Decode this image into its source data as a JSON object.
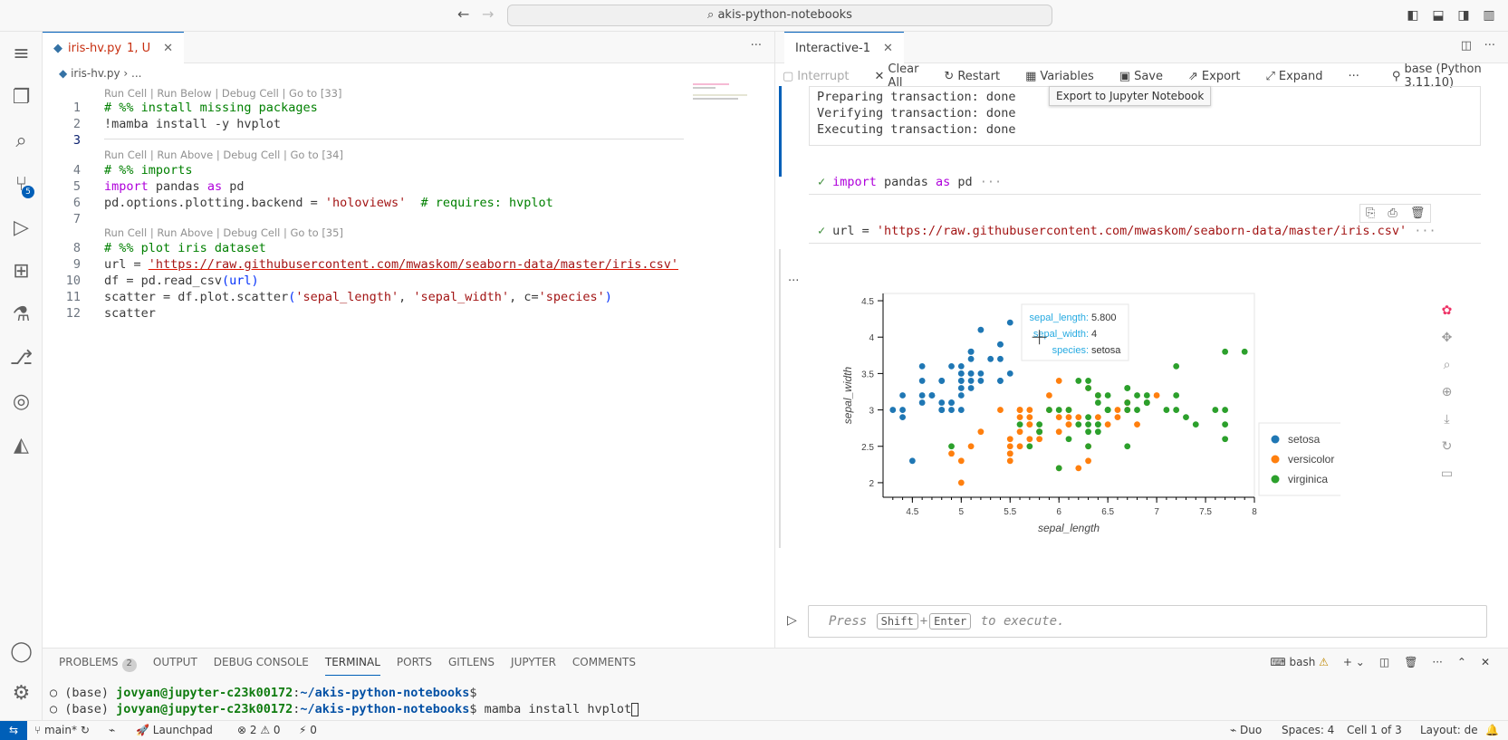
{
  "titlebar": {
    "search": "akis-python-notebooks"
  },
  "activity": {
    "scm_badge": "5"
  },
  "editor": {
    "tab_title": "iris-hv.py",
    "tab_status": "1, U",
    "breadcrumb_file": "iris-hv.py",
    "breadcrumb_more": "...",
    "lens1": "Run Cell | Run Below | Debug Cell | Go to [33]",
    "lens2": "Run Cell | Run Above | Debug Cell | Go to [34]",
    "lens3": "Run Cell | Run Above | Debug Cell | Go to [35]",
    "lines": {
      "l1": "# %% install missing packages",
      "l2": "!mamba install -y hvplot",
      "l4": "# %% imports",
      "l5a": "import",
      "l5b": " pandas ",
      "l5c": "as",
      "l5d": " pd",
      "l6a": "pd.options.plotting.backend = ",
      "l6b": "'holoviews'",
      "l6c": "  # requires: hvplot",
      "l8": "# %% plot iris dataset",
      "l9a": "url = ",
      "l9b": "'https://raw.githubusercontent.com/mwaskom/seaborn-data/master/iris.csv'",
      "l10a": "df = pd.read_csv",
      "l10b": "(url)",
      "l11a": "scatter = df.plot.scatter",
      "l11b": "(",
      "l11c": "'sepal_length'",
      "l11d": ", ",
      "l11e": "'sepal_width'",
      "l11f": ", c=",
      "l11g": "'species'",
      "l11h": ")",
      "l12": "scatter"
    }
  },
  "interactive": {
    "tab_title": "Interactive-1",
    "toolbar": {
      "interrupt": "Interrupt",
      "clear_all": "Clear All",
      "restart": "Restart",
      "variables": "Variables",
      "save": "Save",
      "export": "Export",
      "expand": "Expand",
      "kernel": "base (Python 3.11.10)"
    },
    "tooltip": "Export to Jupyter Notebook",
    "output_lines": [
      "Preparing transaction: done",
      "Verifying transaction: done",
      "Executing transaction: done"
    ],
    "cell2a": "import",
    "cell2b": " pandas ",
    "cell2c": "as",
    "cell2d": " pd",
    "cell3a": "url = ",
    "cell3b": "'https://raw.githubusercontent.com/mwaskom/seaborn-data/master/iris.csv'",
    "hover": {
      "k1": "sepal_length:",
      "v1": "5.800",
      "k2": "sepal_width:",
      "v2": "4",
      "k3": "species:",
      "v3": "setosa"
    },
    "input_press": "Press",
    "input_key1": "Shift",
    "input_plus": "+",
    "input_key2": "Enter",
    "input_to": "to execute."
  },
  "chart_data": {
    "type": "scatter",
    "xlabel": "sepal_length",
    "ylabel": "sepal_width",
    "xlim": [
      4.2,
      8.0
    ],
    "ylim": [
      1.8,
      4.6
    ],
    "xticks": [
      4.5,
      5,
      5.5,
      6,
      6.5,
      7,
      7.5,
      8
    ],
    "yticks": [
      2,
      2.5,
      3,
      3.5,
      4,
      4.5
    ],
    "legend": "right",
    "series": [
      {
        "name": "setosa",
        "color": "#1f77b4",
        "points": [
          [
            5.1,
            3.5
          ],
          [
            4.9,
            3.0
          ],
          [
            4.7,
            3.2
          ],
          [
            4.6,
            3.1
          ],
          [
            5.0,
            3.6
          ],
          [
            5.4,
            3.9
          ],
          [
            4.6,
            3.4
          ],
          [
            5.0,
            3.4
          ],
          [
            4.4,
            2.9
          ],
          [
            4.9,
            3.1
          ],
          [
            5.4,
            3.7
          ],
          [
            4.8,
            3.4
          ],
          [
            4.8,
            3.0
          ],
          [
            4.3,
            3.0
          ],
          [
            5.8,
            4.0
          ],
          [
            5.7,
            4.4
          ],
          [
            5.4,
            3.9
          ],
          [
            5.1,
            3.5
          ],
          [
            5.7,
            3.8
          ],
          [
            5.1,
            3.8
          ],
          [
            5.4,
            3.4
          ],
          [
            5.1,
            3.7
          ],
          [
            4.6,
            3.6
          ],
          [
            5.1,
            3.3
          ],
          [
            4.8,
            3.4
          ],
          [
            5.0,
            3.0
          ],
          [
            5.0,
            3.4
          ],
          [
            5.2,
            3.5
          ],
          [
            5.2,
            3.4
          ],
          [
            4.7,
            3.2
          ],
          [
            4.8,
            3.1
          ],
          [
            5.4,
            3.4
          ],
          [
            5.2,
            4.1
          ],
          [
            5.5,
            4.2
          ],
          [
            4.9,
            3.1
          ],
          [
            5.0,
            3.2
          ],
          [
            5.5,
            3.5
          ],
          [
            4.9,
            3.6
          ],
          [
            4.4,
            3.0
          ],
          [
            5.1,
            3.4
          ],
          [
            5.0,
            3.5
          ],
          [
            4.5,
            2.3
          ],
          [
            4.4,
            3.2
          ],
          [
            5.0,
            3.5
          ],
          [
            5.1,
            3.8
          ],
          [
            4.8,
            3.0
          ],
          [
            5.1,
            3.8
          ],
          [
            4.6,
            3.2
          ],
          [
            5.3,
            3.7
          ],
          [
            5.0,
            3.3
          ]
        ]
      },
      {
        "name": "versicolor",
        "color": "#ff7f0e",
        "points": [
          [
            7.0,
            3.2
          ],
          [
            6.4,
            3.2
          ],
          [
            6.9,
            3.1
          ],
          [
            5.5,
            2.3
          ],
          [
            6.5,
            2.8
          ],
          [
            5.7,
            2.8
          ],
          [
            6.3,
            3.3
          ],
          [
            4.9,
            2.4
          ],
          [
            6.6,
            2.9
          ],
          [
            5.2,
            2.7
          ],
          [
            5.0,
            2.0
          ],
          [
            5.9,
            3.0
          ],
          [
            6.0,
            2.2
          ],
          [
            6.1,
            2.9
          ],
          [
            5.6,
            2.9
          ],
          [
            6.7,
            3.1
          ],
          [
            5.6,
            3.0
          ],
          [
            5.8,
            2.7
          ],
          [
            6.2,
            2.2
          ],
          [
            5.6,
            2.5
          ],
          [
            5.9,
            3.2
          ],
          [
            6.1,
            2.8
          ],
          [
            6.3,
            2.5
          ],
          [
            6.1,
            2.8
          ],
          [
            6.4,
            2.9
          ],
          [
            6.6,
            3.0
          ],
          [
            6.8,
            2.8
          ],
          [
            6.7,
            3.0
          ],
          [
            6.0,
            2.9
          ],
          [
            5.7,
            2.6
          ],
          [
            5.5,
            2.4
          ],
          [
            5.5,
            2.4
          ],
          [
            5.8,
            2.7
          ],
          [
            6.0,
            2.7
          ],
          [
            5.4,
            3.0
          ],
          [
            6.0,
            3.4
          ],
          [
            6.7,
            3.1
          ],
          [
            6.3,
            2.3
          ],
          [
            5.6,
            3.0
          ],
          [
            5.5,
            2.5
          ],
          [
            5.5,
            2.6
          ],
          [
            6.1,
            3.0
          ],
          [
            5.8,
            2.6
          ],
          [
            5.0,
            2.3
          ],
          [
            5.6,
            2.7
          ],
          [
            5.7,
            3.0
          ],
          [
            5.7,
            2.9
          ],
          [
            6.2,
            2.9
          ],
          [
            5.1,
            2.5
          ],
          [
            5.7,
            2.8
          ]
        ]
      },
      {
        "name": "virginica",
        "color": "#2ca02c",
        "points": [
          [
            6.3,
            3.3
          ],
          [
            5.8,
            2.7
          ],
          [
            7.1,
            3.0
          ],
          [
            6.3,
            2.9
          ],
          [
            6.5,
            3.0
          ],
          [
            7.6,
            3.0
          ],
          [
            4.9,
            2.5
          ],
          [
            7.3,
            2.9
          ],
          [
            6.7,
            2.5
          ],
          [
            7.2,
            3.6
          ],
          [
            6.5,
            3.2
          ],
          [
            6.4,
            2.7
          ],
          [
            6.8,
            3.0
          ],
          [
            5.7,
            2.5
          ],
          [
            5.8,
            2.8
          ],
          [
            6.4,
            3.2
          ],
          [
            6.5,
            3.0
          ],
          [
            7.7,
            3.8
          ],
          [
            7.7,
            2.6
          ],
          [
            6.0,
            2.2
          ],
          [
            6.9,
            3.2
          ],
          [
            5.6,
            2.8
          ],
          [
            7.7,
            2.8
          ],
          [
            6.3,
            2.7
          ],
          [
            6.7,
            3.3
          ],
          [
            7.2,
            3.2
          ],
          [
            6.2,
            2.8
          ],
          [
            6.1,
            3.0
          ],
          [
            6.4,
            2.8
          ],
          [
            7.2,
            3.0
          ],
          [
            7.4,
            2.8
          ],
          [
            7.9,
            3.8
          ],
          [
            6.4,
            2.8
          ],
          [
            6.3,
            2.8
          ],
          [
            6.1,
            2.6
          ],
          [
            7.7,
            3.0
          ],
          [
            6.3,
            3.4
          ],
          [
            6.4,
            3.1
          ],
          [
            6.0,
            3.0
          ],
          [
            6.9,
            3.1
          ],
          [
            6.7,
            3.1
          ],
          [
            6.9,
            3.1
          ],
          [
            5.8,
            2.7
          ],
          [
            6.8,
            3.2
          ],
          [
            6.7,
            3.3
          ],
          [
            6.7,
            3.0
          ],
          [
            6.3,
            2.5
          ],
          [
            6.5,
            3.0
          ],
          [
            6.2,
            3.4
          ],
          [
            5.9,
            3.0
          ]
        ]
      }
    ]
  },
  "panel": {
    "tabs": [
      "PROBLEMS",
      "OUTPUT",
      "DEBUG CONSOLE",
      "TERMINAL",
      "PORTS",
      "GITLENS",
      "JUPYTER",
      "COMMENTS"
    ],
    "problems_count": "2",
    "shell": "bash",
    "term1_a": "(base) ",
    "term1_b": "jovyan@jupyter-c23k00172",
    "term1_c": ":",
    "term1_d": "~/akis-python-notebooks",
    "term1_e": "$",
    "term2_a": "(base) ",
    "term2_b": "jovyan@jupyter-c23k00172",
    "term2_c": ":",
    "term2_d": "~/akis-python-notebooks",
    "term2_e": "$ mamba install hvplot"
  },
  "status": {
    "branch": "main*",
    "launchpad": "Launchpad",
    "errors": "2",
    "warnings": "0",
    "ports": "0",
    "duo": "Duo",
    "spaces": "Spaces: 4",
    "cell": "Cell 1 of 3",
    "layout": "Layout: de"
  }
}
